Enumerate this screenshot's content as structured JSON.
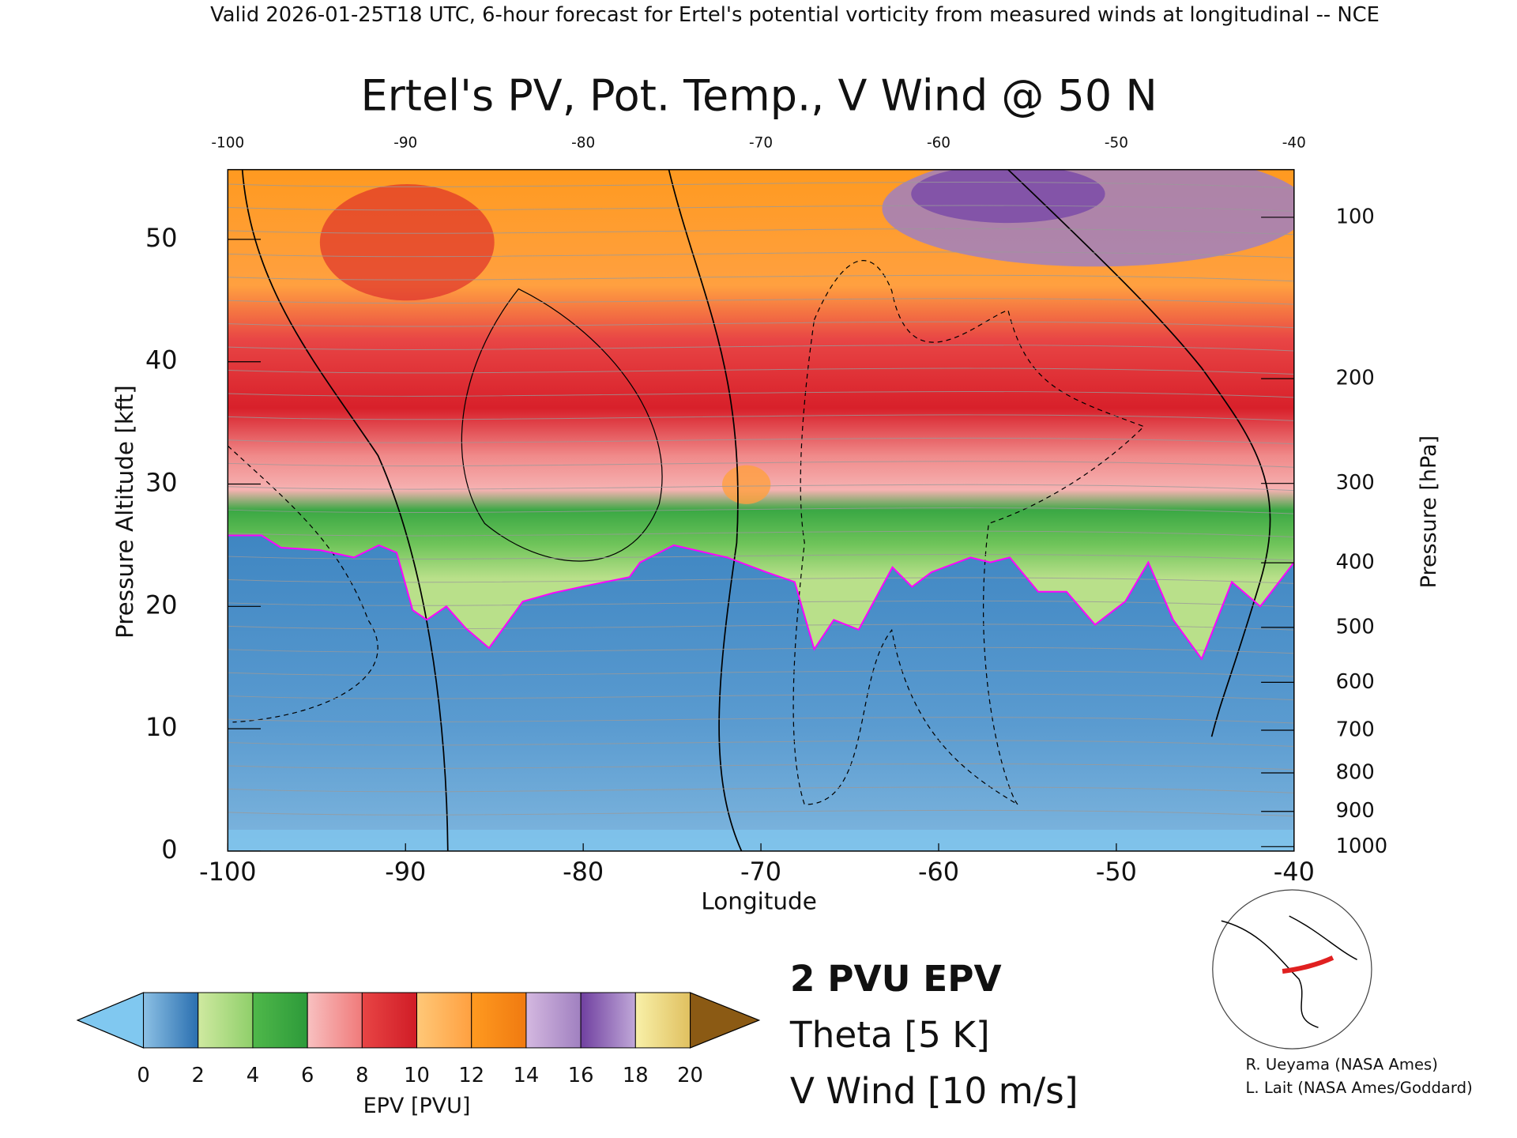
{
  "header": "Valid 2026-01-25T18 UTC, 6-hour forecast for Ertel's potential vorticity from measured winds at longitudinal -- NCE",
  "chart_data": {
    "type": "cross-section",
    "title": "Ertel's PV, Pot. Temp., V Wind @ 50 N",
    "x_label": "Longitude",
    "y_label": "Pressure Altitude [kft]",
    "y2_label": "Pressure [hPa]",
    "xlim": [
      -100,
      -40
    ],
    "xticks": [
      -100,
      -90,
      -80,
      -70,
      -60,
      -50,
      -40
    ],
    "ylim": [
      0,
      55.7
    ],
    "yticks": [
      0,
      10,
      20,
      30,
      40,
      50
    ],
    "y2scale": "pressure",
    "y2ticks": [
      100,
      200,
      300,
      400,
      500,
      600,
      700,
      800,
      900,
      1000
    ],
    "pv2_contour": {
      "name": "2 PVU EPV",
      "color": "#ff00ff",
      "x": [
        -100,
        -98.1,
        -97,
        -94.8,
        -92.9,
        -91.5,
        -90.5,
        -89.6,
        -88.8,
        -87.7,
        -86.6,
        -85.3,
        -83.4,
        -81.7,
        -80.1,
        -77.4,
        -76.8,
        -74.9,
        -71.9,
        -69.7,
        -68.1,
        -67,
        -65.9,
        -64.5,
        -62.6,
        -61.5,
        -60.4,
        -58.2,
        -57.1,
        -56,
        -54.4,
        -52.8,
        -51.2,
        -49.5,
        -48.2,
        -46.8,
        -45.2,
        -43.5,
        -41.9,
        -40
      ],
      "y": [
        25.8,
        25.8,
        24.8,
        24.6,
        24,
        25,
        24.4,
        19.7,
        18.9,
        20,
        18.2,
        16.6,
        20.4,
        21.1,
        21.6,
        22.4,
        23.6,
        25,
        24,
        22.8,
        22,
        16.5,
        18.9,
        18.1,
        23.2,
        21.6,
        22.8,
        24,
        23.6,
        24,
        21.2,
        21.2,
        18.5,
        20.4,
        23.6,
        18.9,
        15.7,
        22,
        20,
        23.6
      ]
    },
    "legend": [
      {
        "label": "2 PVU EPV",
        "color": "#ff00ff"
      },
      {
        "label": "Theta [5 K]",
        "color": "#a0a0a0"
      },
      {
        "label": "V Wind [10 m/s]",
        "color": "#000000"
      }
    ],
    "colorbar": {
      "label": "EPV [PVU]",
      "ticks": [
        0,
        2,
        4,
        6,
        8,
        10,
        12,
        14,
        16,
        18,
        20
      ],
      "colors": [
        [
          "#8cc0e4",
          "#2a6fb0"
        ],
        [
          "#cfe9a0",
          "#8fcf6a"
        ],
        [
          "#4fb84a",
          "#2d9a3a"
        ],
        [
          "#f8c0c0",
          "#f07a7a"
        ],
        [
          "#e84545",
          "#d01c26"
        ],
        [
          "#ffc878",
          "#ffa040"
        ],
        [
          "#ff9a20",
          "#f07a10"
        ],
        [
          "#d4b8e0",
          "#a080c0"
        ],
        [
          "#7040a0",
          "#c0a8d8"
        ],
        [
          "#f8f0a8",
          "#e0c060"
        ]
      ],
      "under_color": "#80c8f0",
      "over_color": "#8b5a14"
    }
  },
  "credits": [
    "R. Ueyama (NASA Ames)",
    "L. Lait (NASA Ames/Goddard)"
  ]
}
